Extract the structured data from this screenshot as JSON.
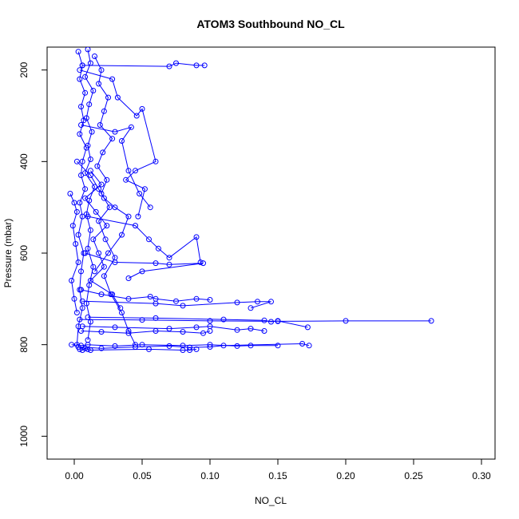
{
  "chart_data": {
    "type": "line",
    "title": "ATOM3 Southbound NO_CL",
    "xlabel": "NO_CL",
    "ylabel": "Pressure (mbar)",
    "xlim": [
      -0.02,
      0.31
    ],
    "ylim": [
      1050,
      150
    ],
    "y_reversed": true,
    "x_ticks": [
      "0.00",
      "0.05",
      "0.10",
      "0.15",
      "0.20",
      "0.25",
      "0.30"
    ],
    "x_tick_values": [
      0.0,
      0.05,
      0.1,
      0.15,
      0.2,
      0.25,
      0.3
    ],
    "y_ticks": [
      "200",
      "400",
      "600",
      "800",
      "1000"
    ],
    "y_tick_values": [
      200,
      400,
      600,
      800,
      1000
    ],
    "grid": false,
    "legend": "none",
    "marker": "open-circle",
    "color": "#0000ff",
    "series": [
      {
        "x": [
          0.003,
          0.006,
          0.004,
          0.008,
          0.005,
          0.007,
          0.004,
          0.009,
          0.006,
          0.005,
          0.008,
          0.004,
          0.006,
          0.003,
          0.007,
          0.005,
          0.004,
          0.006,
          0.003,
          0.002
        ],
        "y": [
          160,
          190,
          220,
          250,
          280,
          310,
          340,
          370,
          400,
          430,
          460,
          490,
          520,
          560,
          600,
          640,
          680,
          720,
          760,
          800
        ]
      },
      {
        "x": [
          0.01,
          0.012,
          0.008,
          0.014,
          0.011,
          0.009,
          0.013,
          0.01,
          0.012,
          0.008,
          0.015,
          0.011,
          0.009,
          0.012,
          0.01,
          0.014,
          0.011,
          0.009,
          0.012,
          0.01
        ],
        "y": [
          155,
          185,
          215,
          245,
          275,
          305,
          335,
          365,
          395,
          425,
          455,
          485,
          515,
          550,
          590,
          630,
          670,
          710,
          750,
          790
        ]
      },
      {
        "x": [
          0.015,
          0.02,
          0.018,
          0.025,
          0.022,
          0.019,
          0.028,
          0.021,
          0.017,
          0.024,
          0.02,
          0.026,
          0.018,
          0.023,
          0.03,
          0.022,
          0.027,
          0.035,
          0.04,
          0.045
        ],
        "y": [
          170,
          200,
          230,
          260,
          290,
          320,
          350,
          380,
          410,
          440,
          470,
          500,
          530,
          570,
          610,
          650,
          690,
          730,
          770,
          800
        ]
      },
      {
        "x": [
          0.004,
          0.028,
          0.032,
          0.046,
          0.05,
          0.06,
          0.045,
          0.038,
          0.052,
          0.047
        ],
        "y": [
          200,
          220,
          260,
          300,
          285,
          400,
          420,
          440,
          460,
          520
        ]
      },
      {
        "x": [
          0.006,
          0.07,
          0.075,
          0.09,
          0.096
        ],
        "y": [
          190,
          192,
          185,
          190,
          190
        ]
      },
      {
        "x": [
          0.005,
          0.03,
          0.042,
          0.035,
          0.04,
          0.048,
          0.056
        ],
        "y": [
          320,
          335,
          325,
          355,
          420,
          470,
          500
        ]
      },
      {
        "x": [
          0.01,
          0.045,
          0.055,
          0.062,
          0.07,
          0.09,
          0.093
        ],
        "y": [
          520,
          540,
          570,
          590,
          610,
          565,
          620
        ]
      },
      {
        "x": [
          0.008,
          0.03,
          0.06,
          0.07,
          0.095,
          0.05,
          0.04
        ],
        "y": [
          600,
          620,
          622,
          625,
          622,
          640,
          655
        ]
      },
      {
        "x": [
          0.005,
          0.02,
          0.04,
          0.056,
          0.06,
          0.075,
          0.09,
          0.1
        ],
        "y": [
          680,
          690,
          700,
          695,
          700,
          705,
          700,
          702
        ]
      },
      {
        "x": [
          0.006,
          0.06,
          0.08,
          0.12,
          0.135,
          0.145,
          0.13
        ],
        "y": [
          705,
          710,
          715,
          708,
          706,
          706,
          720
        ]
      },
      {
        "x": [
          0.004,
          0.05,
          0.1,
          0.15,
          0.2,
          0.263
        ],
        "y": [
          745,
          746,
          748,
          749,
          748,
          748
        ]
      },
      {
        "x": [
          0.01,
          0.06,
          0.11,
          0.14,
          0.145,
          0.15,
          0.172
        ],
        "y": [
          740,
          742,
          745,
          747,
          750,
          748,
          762
        ]
      },
      {
        "x": [
          0.006,
          0.03,
          0.07,
          0.09,
          0.1,
          0.12,
          0.13,
          0.14
        ],
        "y": [
          760,
          762,
          765,
          762,
          760,
          768,
          765,
          770
        ]
      },
      {
        "x": [
          0.005,
          0.02,
          0.04,
          0.06,
          0.08,
          0.095,
          0.1
        ],
        "y": [
          770,
          772,
          775,
          770,
          772,
          775,
          770
        ]
      },
      {
        "x": [
          -0.002,
          0.005,
          0.01,
          0.03,
          0.05,
          0.08,
          0.1,
          0.12,
          0.13,
          0.15
        ],
        "y": [
          800,
          802,
          800,
          803,
          800,
          802,
          800,
          803,
          802,
          802
        ]
      },
      {
        "x": [
          0.003,
          0.02,
          0.045,
          0.07,
          0.085,
          0.1,
          0.11,
          0.168,
          0.173
        ],
        "y": [
          805,
          808,
          805,
          803,
          806,
          805,
          802,
          798,
          802
        ]
      },
      {
        "x": [
          0.004,
          0.006,
          0.008,
          0.01,
          0.012,
          0.055,
          0.08,
          0.085,
          0.09
        ],
        "y": [
          810,
          812,
          808,
          810,
          812,
          810,
          812,
          812,
          810
        ]
      },
      {
        "x": [
          0.002,
          0.012,
          0.018,
          0.022,
          0.03,
          0.04,
          0.035,
          0.025,
          0.015
        ],
        "y": [
          400,
          430,
          460,
          480,
          500,
          520,
          560,
          600,
          640
        ]
      },
      {
        "x": [
          -0.003,
          0.0,
          0.002,
          -0.001,
          0.001,
          0.003,
          -0.002,
          0.0,
          0.002
        ],
        "y": [
          470,
          490,
          510,
          540,
          580,
          620,
          660,
          700,
          730
        ]
      },
      {
        "x": [
          0.012,
          0.02,
          0.008,
          0.016,
          0.024,
          0.014,
          0.018,
          0.022,
          0.012,
          0.028,
          0.034
        ],
        "y": [
          420,
          450,
          480,
          510,
          540,
          570,
          600,
          630,
          660,
          690,
          720
        ]
      }
    ]
  }
}
